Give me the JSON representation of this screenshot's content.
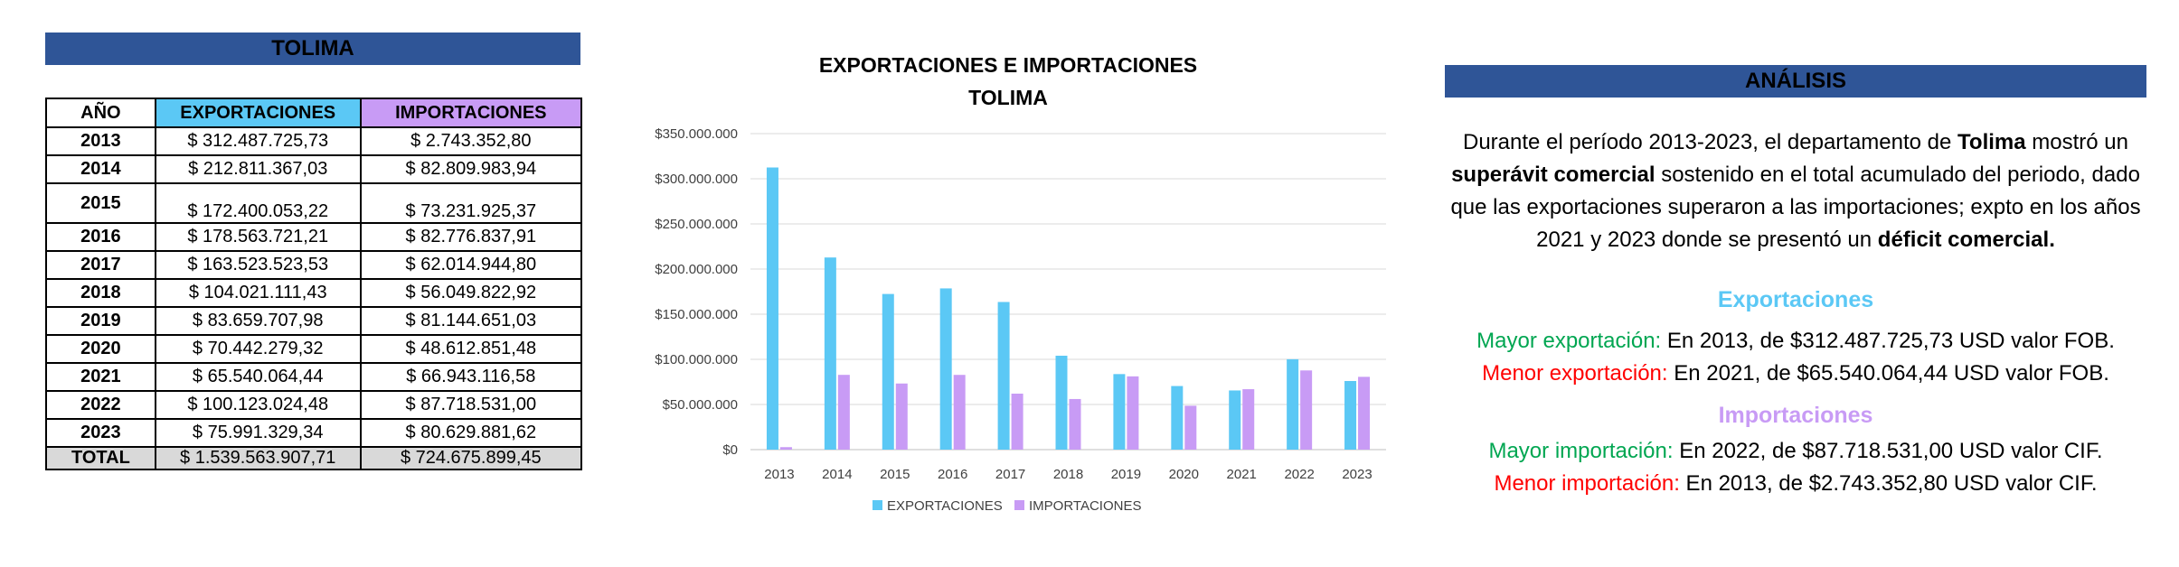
{
  "table": {
    "title": "TOLIMA",
    "headers": [
      "AÑO",
      "EXPORTACIONES",
      "IMPORTACIONES"
    ],
    "rows": [
      {
        "year": "2013",
        "exp": "$ 312.487.725,73",
        "imp": "$ 2.743.352,80"
      },
      {
        "year": "2014",
        "exp": "$ 212.811.367,03",
        "imp": "$ 82.809.983,94"
      },
      {
        "year": "2015",
        "exp": "$ 172.400.053,22",
        "imp": "$ 73.231.925,37"
      },
      {
        "year": "2016",
        "exp": "$ 178.563.721,21",
        "imp": "$ 82.776.837,91"
      },
      {
        "year": "2017",
        "exp": "$ 163.523.523,53",
        "imp": "$ 62.014.944,80"
      },
      {
        "year": "2018",
        "exp": "$ 104.021.111,43",
        "imp": "$ 56.049.822,92"
      },
      {
        "year": "2019",
        "exp": "$ 83.659.707,98",
        "imp": "$ 81.144.651,03"
      },
      {
        "year": "2020",
        "exp": "$ 70.442.279,32",
        "imp": "$ 48.612.851,48"
      },
      {
        "year": "2021",
        "exp": "$ 65.540.064,44",
        "imp": "$ 66.943.116,58"
      },
      {
        "year": "2022",
        "exp": "$ 100.123.024,48",
        "imp": "$ 87.718.531,00"
      },
      {
        "year": "2023",
        "exp": "$ 75.991.329,34",
        "imp": "$ 80.629.881,62"
      }
    ],
    "total": {
      "year": "TOTAL",
      "exp": "$ 1.539.563.907,71",
      "imp": "$ 724.675.899,45"
    }
  },
  "chart_data": {
    "type": "bar",
    "title": "EXPORTACIONES E IMPORTACIONES",
    "subtitle": "TOLIMA",
    "categories": [
      "2013",
      "2014",
      "2015",
      "2016",
      "2017",
      "2018",
      "2019",
      "2020",
      "2021",
      "2022",
      "2023"
    ],
    "series": [
      {
        "name": "EXPORTACIONES",
        "color": "#5BC8F5",
        "values": [
          312487725.73,
          212811367.03,
          172400053.22,
          178563721.21,
          163523523.53,
          104021111.43,
          83659707.98,
          70442279.32,
          65540064.44,
          100123024.48,
          75991329.34
        ]
      },
      {
        "name": "IMPORTACIONES",
        "color": "#C89BF5",
        "values": [
          2743352.8,
          82809983.94,
          73231925.37,
          82776837.91,
          62014944.8,
          56049822.92,
          81144651.03,
          48612851.48,
          66943116.58,
          87718531.0,
          80629881.62
        ]
      }
    ],
    "ylim": [
      0,
      350000000
    ],
    "yticks": [
      0,
      50000000,
      100000000,
      150000000,
      200000000,
      250000000,
      300000000,
      350000000
    ],
    "ytick_labels": [
      "$0",
      "$50.000.000",
      "$100.000.000",
      "$150.000.000",
      "$200.000.000",
      "$250.000.000",
      "$300.000.000",
      "$350.000.000"
    ],
    "grid": true,
    "legend": "bottom"
  },
  "analysis": {
    "title": "ANÁLISIS",
    "p1_a": "Durante el período 2013-2023, el departamento de ",
    "p1_b": "Tolima",
    "p1_c": " mostró un",
    "p2_a": "superávit comercial",
    "p2_b": " sostenido en el total acumulado del periodo, dado",
    "p3": "que las exportaciones superaron a las importaciones; expto en los años",
    "p4_a": "2021 y 2023 donde se presentó un ",
    "p4_b": "déficit comercial.",
    "exp_title": "Exportaciones",
    "exp_max_label": "Mayor exportación:",
    "exp_max_text": " En 2013, de $312.487.725,73 USD valor FOB.",
    "exp_min_label": "Menor exportación:",
    "exp_min_text": " En 2021, de $65.540.064,44 USD valor FOB.",
    "imp_title": "Importaciones",
    "imp_max_label": "Mayor importación:",
    "imp_max_text": " En 2022, de $87.718.531,00 USD valor CIF.",
    "imp_min_label": "Menor importación:",
    "imp_min_text": " En 2013, de $2.743.352,80 USD valor CIF.",
    "colors": {
      "exp_title": "#5BC8F5",
      "imp_title": "#C89BF5",
      "max": "#00A651",
      "min": "#FF0000"
    }
  }
}
